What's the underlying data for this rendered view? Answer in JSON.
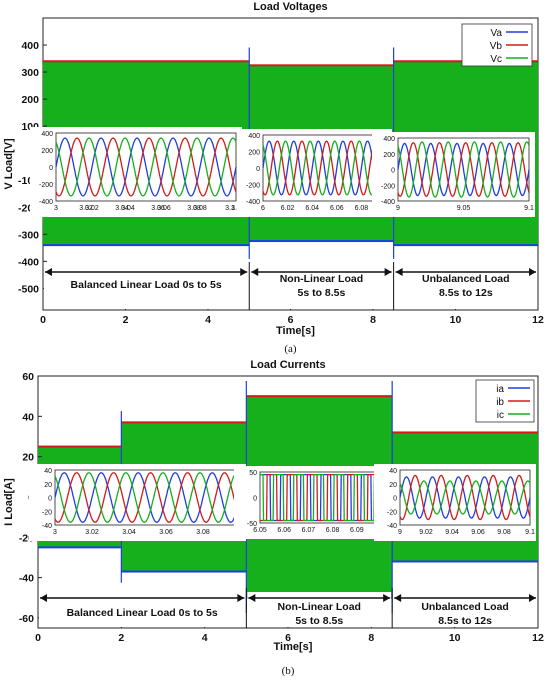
{
  "colors": {
    "a": "#1f3ee0",
    "b": "#d41a1a",
    "c": "#15b01c"
  },
  "chart_data": [
    {
      "type": "line",
      "title": "Load Voltages",
      "xlabel": "Time[s]",
      "ylabel": "V Load[V]",
      "caption": "(a)",
      "xlim": [
        0,
        12
      ],
      "ylim": [
        -580,
        500
      ],
      "xticks": [
        0,
        2,
        4,
        6,
        8,
        10,
        12
      ],
      "yticks": [
        400,
        300,
        200,
        100,
        0,
        -100,
        -200,
        -300,
        -400,
        -500
      ],
      "series": [
        {
          "name": "Va",
          "color_key": "a"
        },
        {
          "name": "Vb",
          "color_key": "b"
        },
        {
          "name": "Vc",
          "color_key": "c"
        }
      ],
      "envelope": [
        {
          "x0": 0,
          "x1": 5,
          "amp": 340
        },
        {
          "x0": 5,
          "x1": 8.5,
          "amp": 325
        },
        {
          "x0": 8.5,
          "x1": 12,
          "amp": 340
        }
      ],
      "segments": [
        {
          "x0": 0,
          "x1": 5,
          "lines": [
            "Balanced Linear Load 0s to 5s"
          ]
        },
        {
          "x0": 5,
          "x1": 8.5,
          "lines": [
            "Non-Linear Load",
            "5s to 8.5s"
          ]
        },
        {
          "x0": 8.5,
          "x1": 12,
          "lines": [
            "Unbalanced Load",
            "8.5s to 12s"
          ]
        }
      ],
      "insets": [
        {
          "x_range": [
            3,
            3.1
          ],
          "ylim": [
            -400,
            400
          ],
          "amplitude": [
            340,
            340,
            340
          ],
          "cycles": 5,
          "xticks_labels": [
            "3",
            "3.02",
            "3.04",
            "3.06",
            "3.08",
            "3.1"
          ],
          "xticks_extra": [
            "3.02",
            "3.04",
            "3.06",
            "3.08",
            "3.1"
          ],
          "yticks_labels": [
            "400",
            "200",
            "0",
            "-200",
            "-400"
          ]
        },
        {
          "x_range": [
            6,
            6.1
          ],
          "ylim": [
            -400,
            400
          ],
          "amplitude": [
            325,
            325,
            325
          ],
          "cycles": 5,
          "xticks_labels": [
            "6",
            "6.02",
            "6.04",
            "6.06",
            "6.08",
            "6.1"
          ],
          "yticks_labels": [
            "400",
            "200",
            "0",
            "-200",
            "-400"
          ]
        },
        {
          "x_range": [
            9,
            9.1
          ],
          "ylim": [
            -400,
            400
          ],
          "amplitude": [
            330,
            340,
            350
          ],
          "cycles": 5,
          "xticks_labels": [
            "9",
            "9.05",
            "9.1"
          ],
          "yticks_labels": [
            "400",
            "200",
            "0",
            "-200",
            "-400"
          ]
        }
      ]
    },
    {
      "type": "line",
      "title": "Load Currents",
      "xlabel": "Time[s]",
      "ylabel": "I Load[A]",
      "caption": "(b)",
      "xlim": [
        0,
        12
      ],
      "ylim": [
        -65,
        60
      ],
      "xticks": [
        0,
        2,
        4,
        6,
        8,
        10,
        12
      ],
      "yticks": [
        60,
        40,
        20,
        0,
        -20,
        -40,
        -60
      ],
      "series": [
        {
          "name": "ia",
          "color_key": "a"
        },
        {
          "name": "ib",
          "color_key": "b"
        },
        {
          "name": "ic",
          "color_key": "c"
        }
      ],
      "envelope": [
        {
          "x0": 0,
          "x1": 2,
          "amp": 25
        },
        {
          "x0": 2,
          "x1": 5,
          "amp": 37
        },
        {
          "x0": 5,
          "x1": 8.5,
          "amp": 50
        },
        {
          "x0": 8.5,
          "x1": 12,
          "amp": 32
        }
      ],
      "segments": [
        {
          "x0": 0,
          "x1": 5,
          "lines": [
            "Balanced Linear Load 0s to 5s"
          ]
        },
        {
          "x0": 5,
          "x1": 8.5,
          "lines": [
            "Non-Linear Load",
            "5s to 8.5s"
          ]
        },
        {
          "x0": 8.5,
          "x1": 12,
          "lines": [
            "Unbalanced Load",
            "8.5s to 12s"
          ]
        }
      ],
      "insets": [
        {
          "x_range": [
            3,
            3.1
          ],
          "ylim": [
            -40,
            40
          ],
          "amplitude": [
            36,
            36,
            36
          ],
          "cycles": 5,
          "wave": "sine",
          "xticks_labels": [
            "3",
            "3.02",
            "3.04",
            "3.06",
            "3.08",
            "3.1"
          ],
          "yticks_labels": [
            "40",
            "20",
            "0",
            "-20",
            "-40"
          ]
        },
        {
          "x_range": [
            6.05,
            6.1
          ],
          "ylim": [
            -50,
            50
          ],
          "amplitude": [
            45,
            45,
            45
          ],
          "cycles": 6,
          "wave": "square",
          "xticks_labels": [
            "6.05",
            "6.06",
            "6.07",
            "6.08",
            "6.09",
            "6.1"
          ],
          "yticks_labels": [
            "50",
            "0",
            "-50"
          ]
        },
        {
          "x_range": [
            9,
            9.1
          ],
          "ylim": [
            -40,
            40
          ],
          "amplitude": [
            30,
            32,
            24
          ],
          "cycles": 5,
          "wave": "sine",
          "xticks_labels": [
            "9",
            "9.02",
            "9.04",
            "9.06",
            "9.08",
            "9.1"
          ],
          "yticks_labels": [
            "40",
            "20",
            "0",
            "-20",
            "-40"
          ]
        }
      ]
    }
  ]
}
